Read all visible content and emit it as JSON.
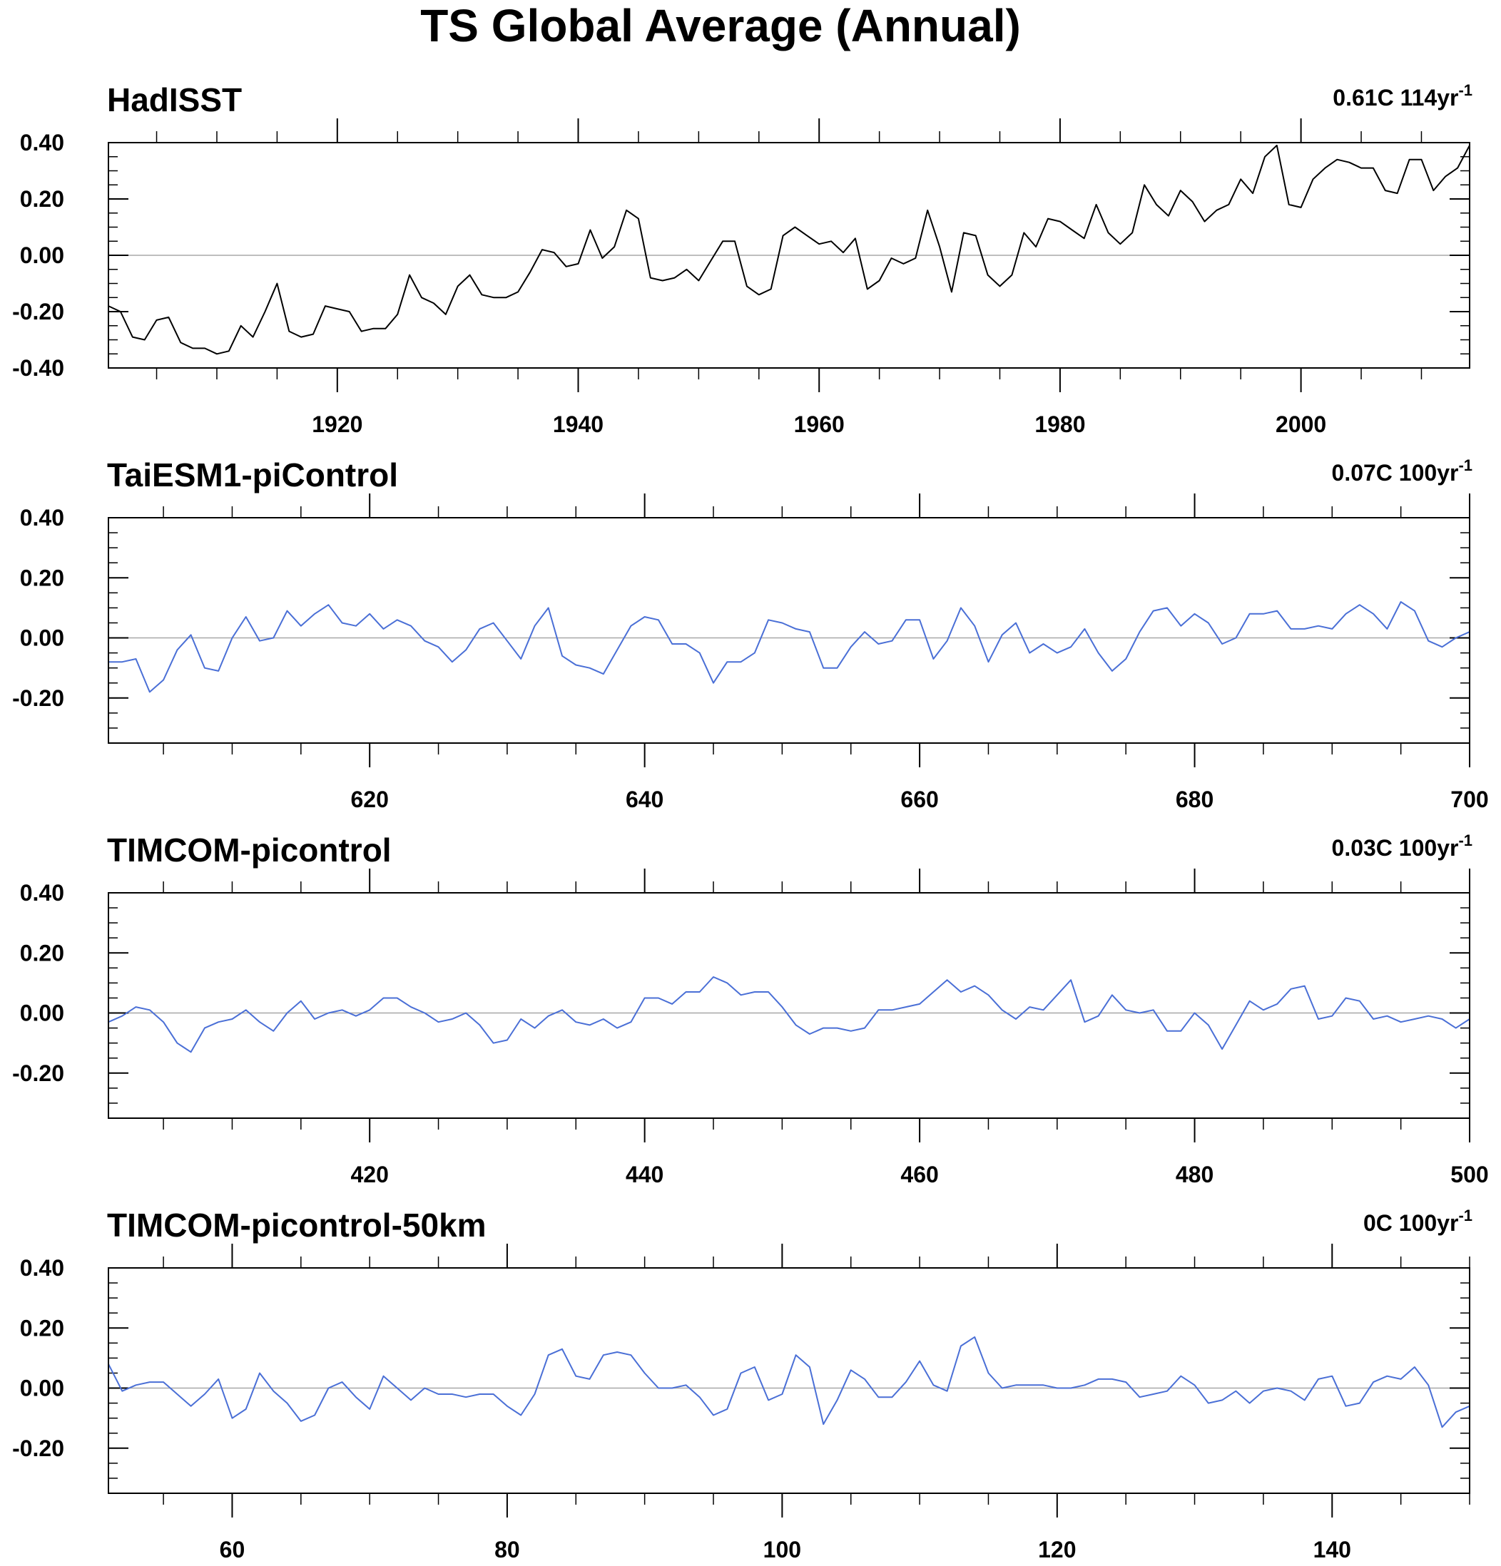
{
  "title": "TS Global Average (Annual)",
  "chart_data": [
    {
      "type": "line",
      "title": "HadISST",
      "trend_text": "0.61C 114yr",
      "trend_superscript": "-1",
      "color": "#000000",
      "xlim": [
        1901,
        2014
      ],
      "ylim": [
        -0.4,
        0.4
      ],
      "x_ticks": [
        1920,
        1940,
        1960,
        1980,
        2000
      ],
      "x_minor_step": 5,
      "y_ticks": [
        -0.4,
        -0.2,
        0.0,
        0.2,
        0.4
      ],
      "y_tick_labels": [
        "-0.40",
        "-0.20",
        "0.00",
        "0.20",
        "0.40"
      ],
      "x_start": 1901,
      "values": [
        -0.18,
        -0.2,
        -0.29,
        -0.3,
        -0.23,
        -0.22,
        -0.31,
        -0.33,
        -0.33,
        -0.35,
        -0.34,
        -0.25,
        -0.29,
        -0.2,
        -0.1,
        -0.27,
        -0.29,
        -0.28,
        -0.18,
        -0.19,
        -0.2,
        -0.27,
        -0.26,
        -0.26,
        -0.21,
        -0.07,
        -0.15,
        -0.17,
        -0.21,
        -0.11,
        -0.07,
        -0.14,
        -0.15,
        -0.15,
        -0.13,
        -0.06,
        0.02,
        0.01,
        -0.04,
        -0.03,
        0.09,
        -0.01,
        0.03,
        0.16,
        0.13,
        -0.08,
        -0.09,
        -0.08,
        -0.05,
        -0.09,
        -0.02,
        0.05,
        0.05,
        -0.11,
        -0.14,
        -0.12,
        0.07,
        0.1,
        0.07,
        0.04,
        0.05,
        0.01,
        0.06,
        -0.12,
        -0.09,
        -0.01,
        -0.03,
        -0.01,
        0.16,
        0.03,
        -0.13,
        0.08,
        0.07,
        -0.07,
        -0.11,
        -0.07,
        0.08,
        0.03,
        0.13,
        0.12,
        0.09,
        0.06,
        0.18,
        0.08,
        0.04,
        0.08,
        0.25,
        0.18,
        0.14,
        0.23,
        0.19,
        0.12,
        0.16,
        0.18,
        0.27,
        0.22,
        0.35,
        0.39,
        0.18,
        0.17,
        0.27,
        0.31,
        0.34,
        0.33,
        0.31,
        0.31,
        0.23,
        0.22,
        0.34,
        0.34,
        0.23,
        0.28,
        0.31,
        0.39
      ]
    },
    {
      "type": "line",
      "title": "TaiESM1-piControl",
      "trend_text": "0.07C 100yr",
      "trend_superscript": "-1",
      "color": "#4a6fd6",
      "xlim": [
        601,
        700
      ],
      "ylim": [
        -0.35,
        0.4
      ],
      "x_ticks": [
        620,
        640,
        660,
        680,
        700
      ],
      "x_minor_step": 5,
      "y_ticks": [
        -0.2,
        0.0,
        0.2,
        0.4
      ],
      "y_tick_labels": [
        "-0.20",
        "0.00",
        "0.20",
        "0.40"
      ],
      "x_start": 601,
      "values": [
        -0.08,
        -0.08,
        -0.07,
        -0.18,
        -0.14,
        -0.04,
        0.01,
        -0.1,
        -0.11,
        0.0,
        0.07,
        -0.01,
        0.0,
        0.09,
        0.04,
        0.08,
        0.11,
        0.05,
        0.04,
        0.08,
        0.03,
        0.06,
        0.04,
        -0.01,
        -0.03,
        -0.08,
        -0.04,
        0.03,
        0.05,
        -0.01,
        -0.07,
        0.04,
        0.1,
        -0.06,
        -0.09,
        -0.1,
        -0.12,
        -0.04,
        0.04,
        0.07,
        0.06,
        -0.02,
        -0.02,
        -0.05,
        -0.15,
        -0.08,
        -0.08,
        -0.05,
        0.06,
        0.05,
        0.03,
        0.02,
        -0.1,
        -0.1,
        -0.03,
        0.02,
        -0.02,
        -0.01,
        0.06,
        0.06,
        -0.07,
        -0.01,
        0.1,
        0.04,
        -0.08,
        0.01,
        0.05,
        -0.05,
        -0.02,
        -0.05,
        -0.03,
        0.03,
        -0.05,
        -0.11,
        -0.07,
        0.02,
        0.09,
        0.1,
        0.04,
        0.08,
        0.05,
        -0.02,
        0.0,
        0.08,
        0.08,
        0.09,
        0.03,
        0.03,
        0.04,
        0.03,
        0.08,
        0.11,
        0.08,
        0.03,
        0.12,
        0.09,
        -0.01,
        -0.03,
        0.0,
        0.02
      ]
    },
    {
      "type": "line",
      "title": "TIMCOM-picontrol",
      "trend_text": "0.03C 100yr",
      "trend_superscript": "-1",
      "color": "#4a6fd6",
      "xlim": [
        401,
        500
      ],
      "ylim": [
        -0.35,
        0.4
      ],
      "x_ticks": [
        420,
        440,
        460,
        480,
        500
      ],
      "x_minor_step": 5,
      "y_ticks": [
        -0.2,
        0.0,
        0.2,
        0.4
      ],
      "y_tick_labels": [
        "-0.20",
        "0.00",
        "0.20",
        "0.40"
      ],
      "x_start": 401,
      "values": [
        -0.03,
        -0.01,
        0.02,
        0.01,
        -0.03,
        -0.1,
        -0.13,
        -0.05,
        -0.03,
        -0.02,
        0.01,
        -0.03,
        -0.06,
        0.0,
        0.04,
        -0.02,
        0.0,
        0.01,
        -0.01,
        0.01,
        0.05,
        0.05,
        0.02,
        0.0,
        -0.03,
        -0.02,
        0.0,
        -0.04,
        -0.1,
        -0.09,
        -0.02,
        -0.05,
        -0.01,
        0.01,
        -0.03,
        -0.04,
        -0.02,
        -0.05,
        -0.03,
        0.05,
        0.05,
        0.03,
        0.07,
        0.07,
        0.12,
        0.1,
        0.06,
        0.07,
        0.07,
        0.02,
        -0.04,
        -0.07,
        -0.05,
        -0.05,
        -0.06,
        -0.05,
        0.01,
        0.01,
        0.02,
        0.03,
        0.07,
        0.11,
        0.07,
        0.09,
        0.06,
        0.01,
        -0.02,
        0.02,
        0.01,
        0.06,
        0.11,
        -0.03,
        -0.01,
        0.06,
        0.01,
        0.0,
        0.01,
        -0.06,
        -0.06,
        0.0,
        -0.04,
        -0.12,
        -0.04,
        0.04,
        0.01,
        0.03,
        0.08,
        0.09,
        -0.02,
        -0.01,
        0.05,
        0.04,
        -0.02,
        -0.01,
        -0.03,
        -0.02,
        -0.01,
        -0.02,
        -0.05,
        -0.02
      ]
    },
    {
      "type": "line",
      "title": "TIMCOM-picontrol-50km",
      "trend_text": "0C 100yr",
      "trend_superscript": "-1",
      "color": "#4a6fd6",
      "xlim": [
        51,
        150
      ],
      "ylim": [
        -0.35,
        0.4
      ],
      "x_ticks": [
        60,
        80,
        100,
        120,
        140
      ],
      "x_minor_step": 5,
      "y_ticks": [
        -0.2,
        0.0,
        0.2,
        0.4
      ],
      "y_tick_labels": [
        "-0.20",
        "0.00",
        "0.20",
        "0.40"
      ],
      "x_start": 51,
      "values": [
        0.08,
        -0.01,
        0.01,
        0.02,
        0.02,
        -0.02,
        -0.06,
        -0.02,
        0.03,
        -0.1,
        -0.07,
        0.05,
        -0.01,
        -0.05,
        -0.11,
        -0.09,
        0.0,
        0.02,
        -0.03,
        -0.07,
        0.04,
        0.0,
        -0.04,
        0.0,
        -0.02,
        -0.02,
        -0.03,
        -0.02,
        -0.02,
        -0.06,
        -0.09,
        -0.02,
        0.11,
        0.13,
        0.04,
        0.03,
        0.11,
        0.12,
        0.11,
        0.05,
        0.0,
        0.0,
        0.01,
        -0.03,
        -0.09,
        -0.07,
        0.05,
        0.07,
        -0.04,
        -0.02,
        0.11,
        0.07,
        -0.12,
        -0.04,
        0.06,
        0.03,
        -0.03,
        -0.03,
        0.02,
        0.09,
        0.01,
        -0.01,
        0.14,
        0.17,
        0.05,
        0.0,
        0.01,
        0.01,
        0.01,
        0.0,
        0.0,
        0.01,
        0.03,
        0.03,
        0.02,
        -0.03,
        -0.02,
        -0.01,
        0.04,
        0.01,
        -0.05,
        -0.04,
        -0.01,
        -0.05,
        -0.01,
        0.0,
        -0.01,
        -0.04,
        0.03,
        0.04,
        -0.06,
        -0.05,
        0.02,
        0.04,
        0.03,
        0.07,
        0.01,
        -0.13,
        -0.08,
        -0.06
      ]
    }
  ]
}
